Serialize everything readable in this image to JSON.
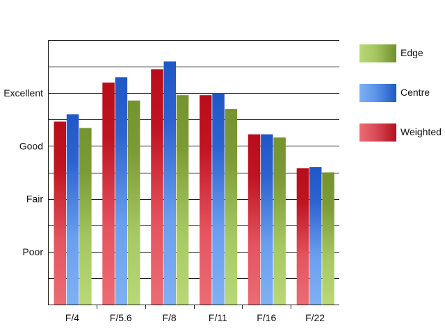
{
  "chart_data": {
    "type": "bar",
    "title": "",
    "xlabel": "",
    "ylabel": "",
    "categories": [
      "F/4",
      "F/5.6",
      "F/8",
      "F/11",
      "F/16",
      "F/22"
    ],
    "series": [
      {
        "name": "Weighted",
        "values": [
          3.46,
          4.2,
          4.45,
          3.96,
          3.22,
          2.58
        ]
      },
      {
        "name": "Centre",
        "values": [
          3.6,
          4.3,
          4.6,
          4.0,
          3.22,
          2.6
        ]
      },
      {
        "name": "Edge",
        "values": [
          3.34,
          3.86,
          3.96,
          3.7,
          3.16,
          2.5
        ]
      }
    ],
    "y_ticks": [
      {
        "value": 1,
        "label": "Poor"
      },
      {
        "value": 2,
        "label": "Fair"
      },
      {
        "value": 3,
        "label": "Good"
      },
      {
        "value": 4,
        "label": "Excellent"
      }
    ],
    "ylim": [
      0,
      5
    ],
    "grid": true,
    "legend_position": "right",
    "colors": {
      "Weighted": "#c41a26",
      "Centre": "#2f6fd6",
      "Edge": "#86a53c"
    }
  },
  "legend": {
    "items": [
      {
        "label": "Edge",
        "swatch": "edge"
      },
      {
        "label": "Centre",
        "swatch": "centre"
      },
      {
        "label": "Weighted",
        "swatch": "weighted"
      }
    ]
  }
}
